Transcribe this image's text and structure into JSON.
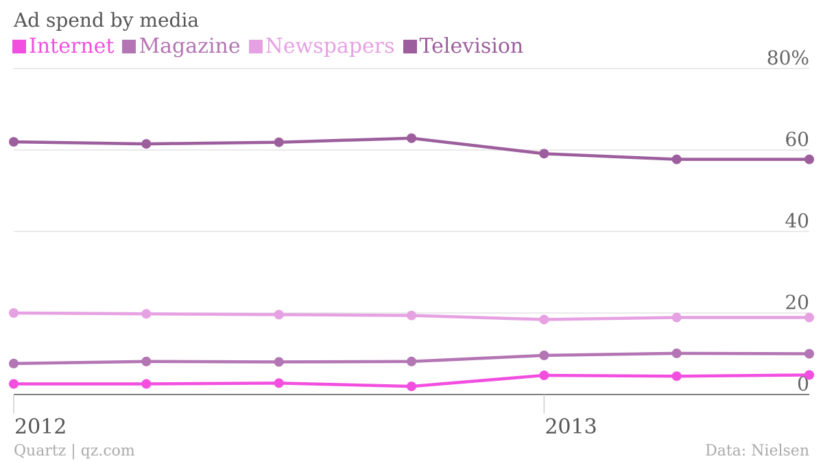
{
  "chart_data": {
    "type": "line",
    "title": "Ad spend by media",
    "x": [
      "2012 Q1",
      "2012 Q2",
      "2012 Q3",
      "2012 Q4",
      "2013 Q1",
      "2013 Q2",
      "2013 Q3"
    ],
    "x_tick_labels": [
      "2012",
      "2013"
    ],
    "y_tick_labels": [
      "0",
      "20",
      "40",
      "60",
      "80%"
    ],
    "ylim": [
      0,
      80
    ],
    "grid": true,
    "legend_placement": "top-left",
    "series": [
      {
        "name": "Internet",
        "color": "#f24fe0",
        "values": [
          2.6,
          2.6,
          2.8,
          2.0,
          4.7,
          4.5,
          4.8
        ]
      },
      {
        "name": "Magazine",
        "color": "#b375b3",
        "values": [
          7.6,
          8.1,
          8.0,
          8.1,
          9.6,
          10.1,
          10.0
        ]
      },
      {
        "name": "Newspapers",
        "color": "#e6a1e2",
        "values": [
          20.0,
          19.8,
          19.6,
          19.4,
          18.4,
          18.9,
          18.9
        ]
      },
      {
        "name": "Television",
        "color": "#9c5e9c",
        "values": [
          62.0,
          61.5,
          61.9,
          62.9,
          59.1,
          57.7,
          57.7
        ]
      }
    ]
  },
  "footer": {
    "source_left": "Quartz | qz.com",
    "source_right": "Data: Nielsen"
  }
}
